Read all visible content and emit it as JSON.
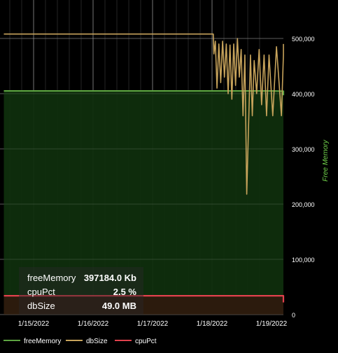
{
  "chart_data": {
    "type": "line",
    "x_dates": [
      "1/15/2022",
      "1/16/2022",
      "1/17/2022",
      "1/18/2022",
      "1/19/2022"
    ],
    "y_axis": {
      "label": "Free Memory",
      "ticks": [
        "0",
        "100,000",
        "200,000",
        "300,000",
        "400,000",
        "500,000"
      ],
      "ylim": [
        0,
        500000
      ],
      "position": "right"
    },
    "grid": true,
    "legend": {
      "placement": "bottom-left",
      "items": [
        {
          "name": "freeMemory",
          "color": "#5da441"
        },
        {
          "name": "dbSize",
          "color": "#c7a35b"
        },
        {
          "name": "cpuPct",
          "color": "#e0414d"
        }
      ]
    },
    "series": [
      {
        "name": "freeMemory",
        "color": "#5da441",
        "fill": "#0f2e0d",
        "points": [
          [
            "2022-01-14 12:00",
            405000
          ],
          [
            "2022-01-15 00:00",
            405000
          ],
          [
            "2022-01-16 00:00",
            405000
          ],
          [
            "2022-01-17 00:00",
            405000
          ],
          [
            "2022-01-18 00:00",
            405000
          ],
          [
            "2022-01-19 00:00",
            405000
          ],
          [
            "2022-01-19 06:00",
            404500
          ],
          [
            "2022-01-19 07:00",
            397184
          ]
        ]
      },
      {
        "name": "dbSize",
        "color": "#c7a35b",
        "points": [
          [
            "2022-01-14 12:00",
            508000
          ],
          [
            "2022-01-15 00:00",
            508000
          ],
          [
            "2022-01-16 00:00",
            508000
          ],
          [
            "2022-01-17 00:00",
            508000
          ],
          [
            "2022-01-18 00:00",
            508000
          ],
          [
            "2022-01-18 00:30",
            508000
          ],
          [
            "2022-01-18 00:45",
            472000
          ],
          [
            "2022-01-18 01:20",
            495000
          ],
          [
            "2022-01-18 02:00",
            410000
          ],
          [
            "2022-01-18 02:45",
            490000
          ],
          [
            "2022-01-18 03:30",
            420000
          ],
          [
            "2022-01-18 04:15",
            495000
          ],
          [
            "2022-01-18 05:00",
            430000
          ],
          [
            "2022-01-18 05:45",
            490000
          ],
          [
            "2022-01-18 06:30",
            400000
          ],
          [
            "2022-01-18 07:15",
            488000
          ],
          [
            "2022-01-18 08:00",
            390000
          ],
          [
            "2022-01-18 08:45",
            490000
          ],
          [
            "2022-01-18 09:30",
            415000
          ],
          [
            "2022-01-18 10:15",
            500000
          ],
          [
            "2022-01-18 11:00",
            430000
          ],
          [
            "2022-01-18 11:45",
            480000
          ],
          [
            "2022-01-18 12:30",
            360000
          ],
          [
            "2022-01-18 13:15",
            470000
          ],
          [
            "2022-01-18 14:00",
            218000
          ],
          [
            "2022-01-18 15:30",
            470000
          ],
          [
            "2022-01-18 16:15",
            360000
          ],
          [
            "2022-01-18 17:00",
            460000
          ],
          [
            "2022-01-18 18:00",
            400000
          ],
          [
            "2022-01-18 19:00",
            480000
          ],
          [
            "2022-01-18 20:00",
            380000
          ],
          [
            "2022-01-18 21:00",
            470000
          ],
          [
            "2022-01-18 22:00",
            360000
          ],
          [
            "2022-01-18 23:00",
            470000
          ],
          [
            "2022-01-19 00:30",
            360000
          ],
          [
            "2022-01-19 02:00",
            485000
          ],
          [
            "2022-01-19 04:00",
            360000
          ],
          [
            "2022-01-19 06:00",
            470000
          ],
          [
            "2022-01-19 07:00",
            490000
          ]
        ]
      },
      {
        "name": "cpuPct",
        "color": "#e0414d",
        "fill": "#2e1a0e",
        "points": [
          [
            "2022-01-14 12:00",
            34000
          ],
          [
            "2022-01-15 00:00",
            34000
          ],
          [
            "2022-01-16 00:00",
            34000
          ],
          [
            "2022-01-17 00:00",
            34000
          ],
          [
            "2022-01-18 00:00",
            34000
          ],
          [
            "2022-01-19 00:00",
            34000
          ],
          [
            "2022-01-19 05:00",
            34000
          ],
          [
            "2022-01-19 06:00",
            22000
          ],
          [
            "2022-01-19 07:00",
            22000
          ]
        ]
      }
    ]
  },
  "tooltip": {
    "rows": [
      {
        "label": "freeMemory",
        "value": "397184.0 Kb"
      },
      {
        "label": "cpuPct",
        "value": "2.5 %"
      },
      {
        "label": "dbSize",
        "value": "49.0 MB"
      }
    ]
  }
}
